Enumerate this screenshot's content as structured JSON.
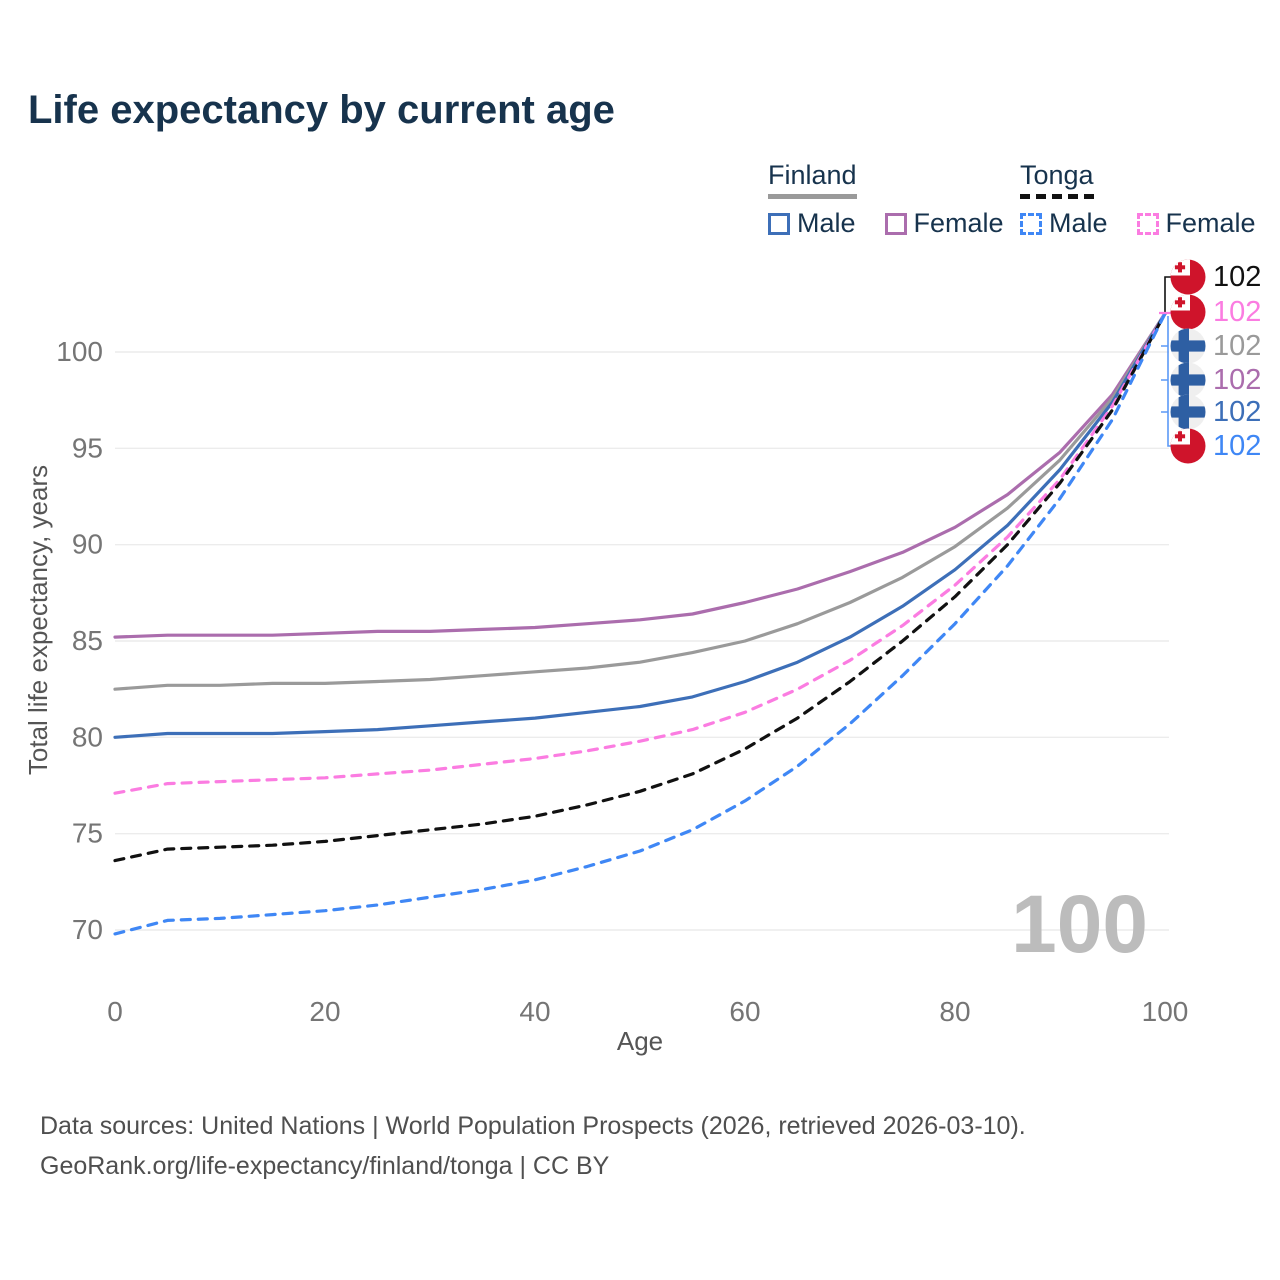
{
  "title": "Life expectancy by current age",
  "legend": {
    "finland": {
      "name": "Finland",
      "male_label": "Male",
      "female_label": "Female"
    },
    "tonga": {
      "name": "Tonga",
      "male_label": "Male",
      "female_label": "Female"
    }
  },
  "colors": {
    "title": "#17334d",
    "grid": "#ececec",
    "tick": "#757575",
    "axis_label": "#555555",
    "watermark": "#bcbcbc",
    "footer": "#4f4f4f",
    "finland_male": "#3d6fb8",
    "finland_female": "#ab6dad",
    "finland_total": "#9a9a9a",
    "tonga_male": "#3f87f5",
    "tonga_female": "#fb7ce1",
    "tonga_total": "#111111",
    "finland_flag_blue": "#2e5fa3",
    "finland_flag_bg": "#efefef",
    "tonga_flag_red": "#cf142b"
  },
  "axes": {
    "x_label": "Age",
    "y_label": "Total life expectancy, years",
    "x_ticks": [
      0,
      20,
      40,
      60,
      80,
      100
    ],
    "y_ticks": [
      70,
      75,
      80,
      85,
      90,
      95,
      100
    ]
  },
  "watermark": "100",
  "end_labels": [
    {
      "flag": "tonga",
      "series": "tonga_total",
      "value": "102"
    },
    {
      "flag": "tonga",
      "series": "tonga_female",
      "value": "102"
    },
    {
      "flag": "finland",
      "series": "finland_total",
      "value": "102"
    },
    {
      "flag": "finland",
      "series": "finland_female",
      "value": "102"
    },
    {
      "flag": "finland",
      "series": "finland_male",
      "value": "102"
    },
    {
      "flag": "tonga",
      "series": "tonga_male",
      "value": "102"
    }
  ],
  "footer": {
    "line1": "Data sources: United Nations | World Population Prospects (2026, retrieved 2026-03-10).",
    "line2": "GeoRank.org/life-expectancy/finland/tonga | CC BY"
  },
  "chart_data": {
    "type": "line",
    "title": "Life expectancy by current age",
    "xlabel": "Age",
    "ylabel": "Total life expectancy, years",
    "xlim": [
      0,
      100
    ],
    "ylim": [
      67,
      104
    ],
    "grid": "horizontal",
    "legend_position": "top-right",
    "x_ages": [
      0,
      5,
      10,
      15,
      20,
      25,
      30,
      35,
      40,
      45,
      50,
      55,
      60,
      65,
      70,
      75,
      80,
      85,
      90,
      95,
      100
    ],
    "series": [
      {
        "id": "finland_female",
        "name": "Finland Female",
        "style": "solid",
        "color": "#ab6dad",
        "values": [
          85.2,
          85.3,
          85.3,
          85.3,
          85.4,
          85.5,
          85.5,
          85.6,
          85.7,
          85.9,
          86.1,
          86.4,
          87.0,
          87.7,
          88.6,
          89.6,
          90.9,
          92.6,
          94.8,
          97.8,
          102
        ]
      },
      {
        "id": "finland_total",
        "name": "Finland Both sexes",
        "style": "solid",
        "color": "#9a9a9a",
        "values": [
          82.5,
          82.7,
          82.7,
          82.8,
          82.8,
          82.9,
          83.0,
          83.2,
          83.4,
          83.6,
          83.9,
          84.4,
          85.0,
          85.9,
          87.0,
          88.3,
          89.9,
          91.9,
          94.4,
          97.6,
          102
        ]
      },
      {
        "id": "finland_male",
        "name": "Finland Male",
        "style": "solid",
        "color": "#3d6fb8",
        "values": [
          80.0,
          80.2,
          80.2,
          80.2,
          80.3,
          80.4,
          80.6,
          80.8,
          81.0,
          81.3,
          81.6,
          82.1,
          82.9,
          83.9,
          85.2,
          86.8,
          88.7,
          91.0,
          93.9,
          97.4,
          102
        ]
      },
      {
        "id": "tonga_female",
        "name": "Tonga Female",
        "style": "dashed",
        "color": "#fb7ce1",
        "values": [
          77.1,
          77.6,
          77.7,
          77.8,
          77.9,
          78.1,
          78.3,
          78.6,
          78.9,
          79.3,
          79.8,
          80.4,
          81.3,
          82.5,
          84.0,
          85.8,
          87.9,
          90.4,
          93.4,
          97.2,
          102
        ]
      },
      {
        "id": "tonga_total",
        "name": "Tonga Both sexes",
        "style": "dashed",
        "color": "#111111",
        "values": [
          73.6,
          74.2,
          74.3,
          74.4,
          74.6,
          74.9,
          75.2,
          75.5,
          75.9,
          76.5,
          77.2,
          78.1,
          79.4,
          81.0,
          82.9,
          85.0,
          87.3,
          90.0,
          93.2,
          97.0,
          102
        ]
      },
      {
        "id": "tonga_male",
        "name": "Tonga Male",
        "style": "dashed",
        "color": "#3f87f5",
        "values": [
          69.8,
          70.5,
          70.6,
          70.8,
          71.0,
          71.3,
          71.7,
          72.1,
          72.6,
          73.3,
          74.1,
          75.2,
          76.7,
          78.5,
          80.7,
          83.2,
          85.9,
          88.9,
          92.4,
          96.5,
          102
        ]
      }
    ],
    "end_age": 100,
    "end_value_all_series": 102
  }
}
